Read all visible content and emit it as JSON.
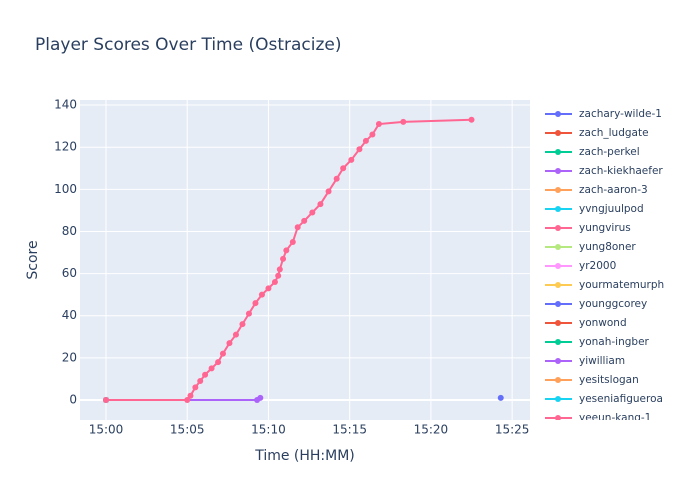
{
  "chart_data": {
    "type": "line",
    "title": "Player Scores Over Time (Ostracize)",
    "x_label": "Time (HH:MM)",
    "y_label": "Score",
    "xlim": [
      898.4,
      926.1
    ],
    "xticks": [
      {
        "value": 900,
        "label": "15:00"
      },
      {
        "value": 905,
        "label": "15:05"
      },
      {
        "value": 910,
        "label": "15:10"
      },
      {
        "value": 915,
        "label": "15:15"
      },
      {
        "value": 920,
        "label": "15:20"
      },
      {
        "value": 925,
        "label": "15:25"
      }
    ],
    "ylim": [
      -9.5,
      142.4
    ],
    "yticks": [
      0,
      20,
      40,
      60,
      80,
      100,
      120,
      140
    ],
    "grid": true,
    "series": [
      {
        "name": "zachary-wilde-1",
        "color": "#636efa",
        "x": [
          924.3
        ],
        "values": [
          1
        ]
      },
      {
        "name": "zach_ludgate",
        "color": "#EF553B",
        "x": [
          900
        ],
        "values": [
          0
        ]
      },
      {
        "name": "zach-perkel",
        "color": "#00cc96",
        "x": [
          900
        ],
        "values": [
          0
        ]
      },
      {
        "name": "zach-kiekhaefer",
        "color": "#ab63fa",
        "x": [
          900,
          909.3,
          909.5
        ],
        "values": [
          0,
          0,
          1
        ]
      },
      {
        "name": "zach-aaron-3",
        "color": "#FFA15A",
        "x": [
          900
        ],
        "values": [
          0
        ]
      },
      {
        "name": "yvngjuulpod",
        "color": "#19d3f3",
        "x": [
          900
        ],
        "values": [
          0
        ]
      },
      {
        "name": "yungvirus",
        "color": "#FF6692",
        "x": [
          900,
          905.0,
          905.2,
          905.5,
          905.8,
          906.1,
          906.5,
          906.9,
          907.2,
          907.6,
          908.0,
          908.4,
          908.8,
          909.2,
          909.6,
          910.0,
          910.4,
          910.6,
          910.7,
          910.9,
          911.1,
          911.5,
          911.8,
          912.2,
          912.7,
          913.2,
          913.7,
          914.2,
          914.6,
          915.1,
          915.6,
          916.0,
          916.4,
          916.8,
          918.3,
          922.5
        ],
        "values": [
          0,
          0,
          2,
          6,
          9,
          12,
          15,
          18,
          22,
          27,
          31,
          36,
          41,
          46,
          50,
          53,
          56,
          59,
          62,
          67,
          71,
          75,
          82,
          85,
          89,
          93,
          99,
          105,
          110,
          114,
          119,
          123,
          126,
          131,
          132,
          133
        ]
      },
      {
        "name": "yung8oner",
        "color": "#B6E880",
        "x": [
          900
        ],
        "values": [
          0
        ]
      },
      {
        "name": "yr2000",
        "color": "#FF97FF",
        "x": [
          900
        ],
        "values": [
          0
        ]
      },
      {
        "name": "yourmatemurph",
        "color": "#FECB52",
        "x": [
          900
        ],
        "values": [
          0
        ]
      },
      {
        "name": "younggcorey",
        "color": "#636efa",
        "x": [
          900
        ],
        "values": [
          0
        ]
      },
      {
        "name": "yonwond",
        "color": "#EF553B",
        "x": [
          900
        ],
        "values": [
          0
        ]
      },
      {
        "name": "yonah-ingber",
        "color": "#00cc96",
        "x": [
          900
        ],
        "values": [
          0
        ]
      },
      {
        "name": "yiwilliam",
        "color": "#ab63fa",
        "x": [
          900
        ],
        "values": [
          0
        ]
      },
      {
        "name": "yesitslogan",
        "color": "#FFA15A",
        "x": [
          900
        ],
        "values": [
          0
        ]
      },
      {
        "name": "yeseniafigueroa",
        "color": "#19d3f3",
        "x": [
          900
        ],
        "values": [
          0
        ]
      },
      {
        "name": "yeeun-kang-1",
        "color": "#FF6692",
        "x": [
          900
        ],
        "values": [
          0
        ]
      }
    ]
  }
}
